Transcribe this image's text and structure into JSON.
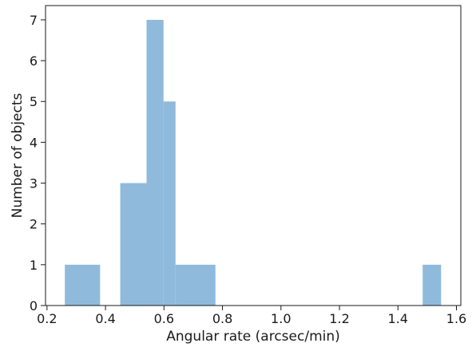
{
  "chart_data": {
    "type": "bar",
    "subtype": "histogram",
    "title": "",
    "xlabel": "Angular rate (arcsec/min)",
    "ylabel": "Number of objects",
    "xlim": [
      0.195,
      1.615
    ],
    "ylim": [
      0,
      7.35
    ],
    "grid": false,
    "bar_color": "#8fbadb",
    "x_ticks": [
      {
        "value": 0.2,
        "label": "0.2"
      },
      {
        "value": 0.4,
        "label": "0.4"
      },
      {
        "value": 0.6,
        "label": "0.6"
      },
      {
        "value": 0.8,
        "label": "0.8"
      },
      {
        "value": 1.0,
        "label": "1.0"
      },
      {
        "value": 1.2,
        "label": "1.2"
      },
      {
        "value": 1.4,
        "label": "1.4"
      },
      {
        "value": 1.6,
        "label": "1.6"
      }
    ],
    "y_ticks": [
      {
        "value": 0,
        "label": "0"
      },
      {
        "value": 1,
        "label": "1"
      },
      {
        "value": 2,
        "label": "2"
      },
      {
        "value": 3,
        "label": "3"
      },
      {
        "value": 4,
        "label": "4"
      },
      {
        "value": 5,
        "label": "5"
      },
      {
        "value": 6,
        "label": "6"
      },
      {
        "value": 7,
        "label": "7"
      }
    ],
    "bins": [
      {
        "x0": 0.261,
        "x1": 0.3815,
        "count": 1
      },
      {
        "x0": 0.4505,
        "x1": 0.5405,
        "count": 3
      },
      {
        "x0": 0.5405,
        "x1": 0.5985,
        "count": 7
      },
      {
        "x0": 0.5985,
        "x1": 0.6395,
        "count": 5
      },
      {
        "x0": 0.6395,
        "x1": 0.776,
        "count": 1
      },
      {
        "x0": 1.4845,
        "x1": 1.5475,
        "count": 1
      }
    ]
  }
}
